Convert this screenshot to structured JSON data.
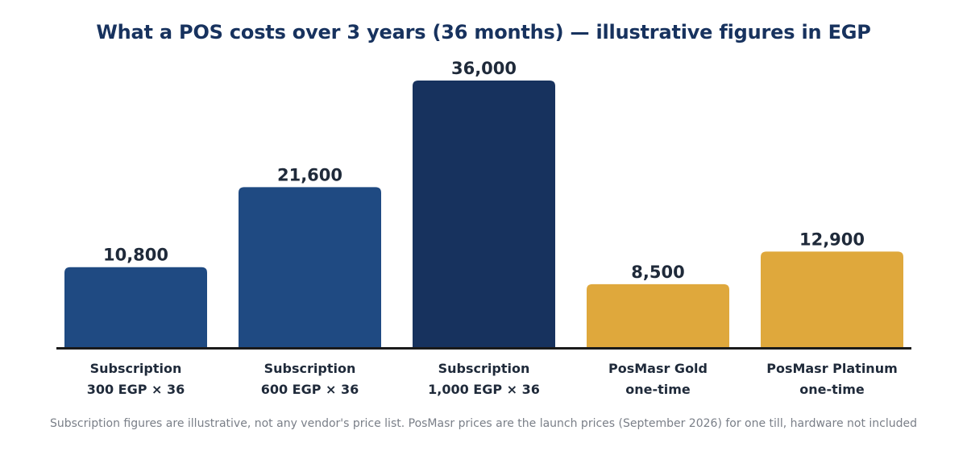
{
  "colors": {
    "title": "#17325e",
    "axis": "#1a1a1a",
    "value_label": "#1f2a3a",
    "category_label": "#1f2a3a",
    "footnote": "#7a7f88"
  },
  "chart_data": {
    "type": "bar",
    "title": "What a POS costs over 3 years (36 months) — illustrative figures in EGP",
    "xlabel": "",
    "ylabel": "",
    "ylim": [
      0,
      36000
    ],
    "grid": false,
    "legend": "none",
    "categories": [
      [
        "Subscription",
        "300 EGP × 36"
      ],
      [
        "Subscription",
        "600 EGP × 36"
      ],
      [
        "Subscription",
        "1,000 EGP × 36"
      ],
      [
        "PosMasr Gold",
        "one-time"
      ],
      [
        "PosMasr Platinum",
        "one-time"
      ]
    ],
    "values": [
      10800,
      21600,
      36000,
      8500,
      12900
    ],
    "value_labels": [
      "10,800",
      "21,600",
      "36,000",
      "8,500",
      "12,900"
    ],
    "bar_colors": [
      "#1f4a82",
      "#1f4a82",
      "#17325e",
      "#dfa83c",
      "#dfa83c"
    ]
  },
  "footnote": "Subscription figures are illustrative, not any vendor's price list. PosMasr prices are the launch prices (September 2026) for one till, hardware not included"
}
